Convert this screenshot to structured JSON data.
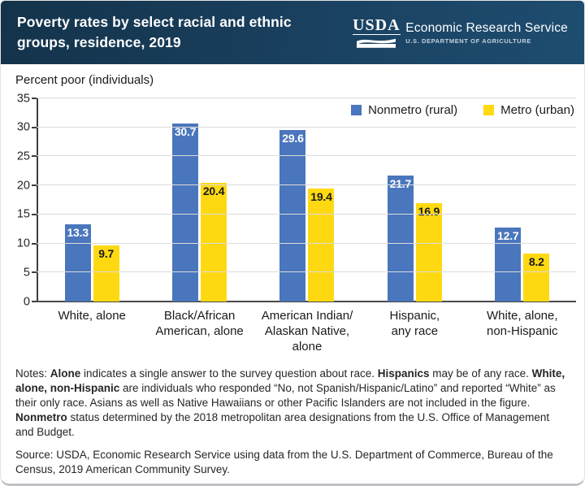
{
  "header": {
    "title": "Poverty rates by select racial and ethnic groups, residence, 2019",
    "logo": {
      "acronym": "USDA",
      "agency": "Economic Research Service",
      "department": "U.S. DEPARTMENT OF AGRICULTURE"
    }
  },
  "chart_data": {
    "type": "bar",
    "title": "Poverty rates by select racial and ethnic groups, residence, 2019",
    "axis_title": "Percent poor (individuals)",
    "categories": [
      "White, alone",
      "Black/African American, alone",
      "American Indian/Alaskan Native, alone",
      "Hispanic, any race",
      "White, alone, non-Hispanic"
    ],
    "categories_lines": [
      [
        "White, alone"
      ],
      [
        "Black/African",
        "American, alone"
      ],
      [
        "American Indian/",
        "Alaskan Native,",
        "alone"
      ],
      [
        "Hispanic,",
        "any race"
      ],
      [
        "White, alone,",
        "non-Hispanic"
      ]
    ],
    "series": [
      {
        "name": "Nonmetro (rural)",
        "color": "#4a76bd",
        "label_color": "#ffffff",
        "values": [
          13.3,
          30.7,
          29.6,
          21.7,
          12.7
        ]
      },
      {
        "name": "Metro (urban)",
        "color": "#fed912",
        "label_color": "#1a1a1a",
        "values": [
          9.7,
          20.4,
          19.4,
          16.9,
          8.2
        ]
      }
    ],
    "ylim": [
      0,
      35
    ],
    "ytick_step": 5,
    "grid": true,
    "legend_position": "top-right"
  },
  "notes": {
    "segments": [
      {
        "t": "Notes: ",
        "b": false
      },
      {
        "t": "Alone",
        "b": true
      },
      {
        "t": " indicates a single answer to the survey question about race. ",
        "b": false
      },
      {
        "t": "Hispanics",
        "b": true
      },
      {
        "t": " may be of any race. ",
        "b": false
      },
      {
        "t": "White, alone, non-Hispanic",
        "b": true
      },
      {
        "t": " are individuals who responded “No, not Spanish/Hispanic/Latino” and reported “White” as their only race. Asians as well as Native Hawaiians or other Pacific Islanders are not included in the figure. ",
        "b": false
      },
      {
        "t": "Nonmetro",
        "b": true
      },
      {
        "t": " status determined by the 2018 metropolitan area designations from the U.S. Office of Management and Budget.",
        "b": false
      }
    ]
  },
  "source": {
    "text": "Source: USDA, Economic Research Service using data from the U.S. Department of Commerce, Bureau of the Census, 2019 American Community Survey."
  },
  "colors": {
    "header_bg": "#1a4161",
    "bar_blue": "#4a76bd",
    "bar_yellow": "#fed912",
    "gridline": "#dcdcdc",
    "axis": "#3d3d3d"
  }
}
